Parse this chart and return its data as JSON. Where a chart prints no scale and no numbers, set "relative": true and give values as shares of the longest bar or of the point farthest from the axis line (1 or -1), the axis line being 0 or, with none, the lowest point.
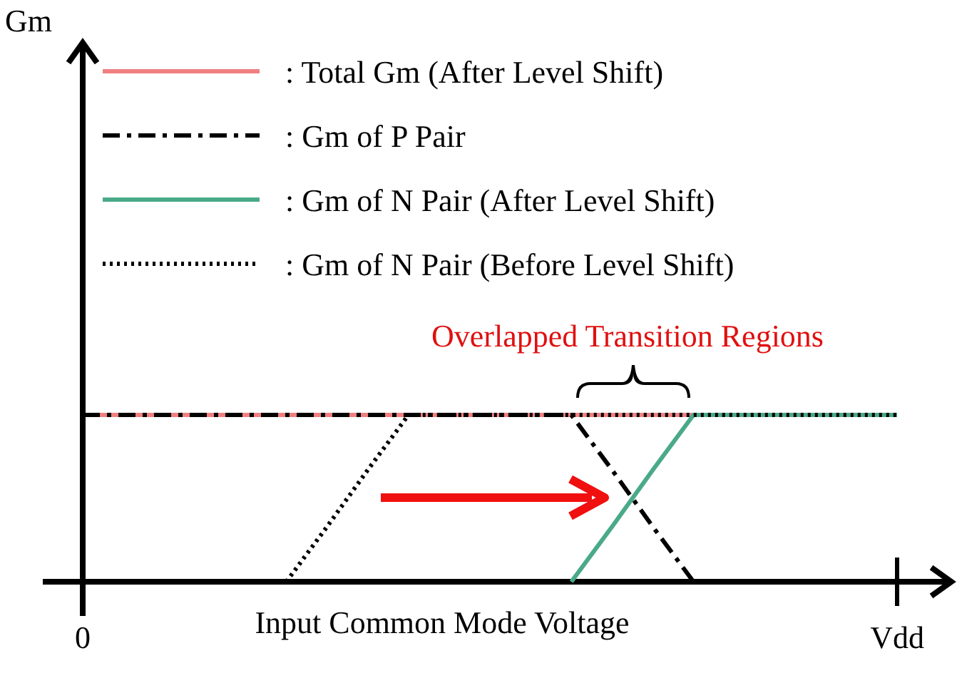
{
  "chart_data": {
    "type": "line",
    "relative": true,
    "xlabel": "Input Common Mode Voltage",
    "categories": [
      "0",
      null,
      null,
      null,
      null,
      null,
      null,
      null,
      null,
      null,
      null,
      null,
      null,
      null,
      null,
      null,
      null,
      null,
      null,
      null,
      "Vdd"
    ],
    "legend": "top",
    "grid": false,
    "annotations": [
      "Gm",
      "Overlapped Transition Regions"
    ],
    "series": [
      {
        "name": ": Total Gm (After Level Shift)",
        "color": "#f08080",
        "line_style": "solid",
        "values": [
          1,
          1,
          1,
          1,
          1,
          1,
          1,
          1,
          1,
          1,
          1,
          1,
          1,
          1,
          1,
          1,
          null,
          null,
          null,
          null,
          null
        ]
      },
      {
        "name": ": Gm of P Pair",
        "color": "#000000",
        "line_style": "dashdot",
        "values": [
          1,
          1,
          1,
          1,
          1,
          1,
          1,
          1,
          1,
          1,
          1,
          1,
          1,
          0.67,
          0.33,
          0,
          null,
          null,
          null,
          null,
          null
        ]
      },
      {
        "name": ": Gm of N Pair (After Level Shift)",
        "color": "#4aaa88",
        "line_style": "solid",
        "values": [
          null,
          null,
          null,
          null,
          null,
          null,
          null,
          null,
          null,
          null,
          null,
          null,
          0,
          0.33,
          0.67,
          1,
          1,
          1,
          1,
          1,
          1
        ]
      },
      {
        "name": ": Gm of N Pair (Before Level Shift)",
        "color": "#000000",
        "line_style": "dotted",
        "values": [
          null,
          null,
          null,
          null,
          null,
          0,
          0.33,
          0.67,
          1,
          1,
          1,
          1,
          1,
          1,
          1,
          1,
          1,
          1,
          1,
          1,
          1
        ]
      }
    ]
  }
}
